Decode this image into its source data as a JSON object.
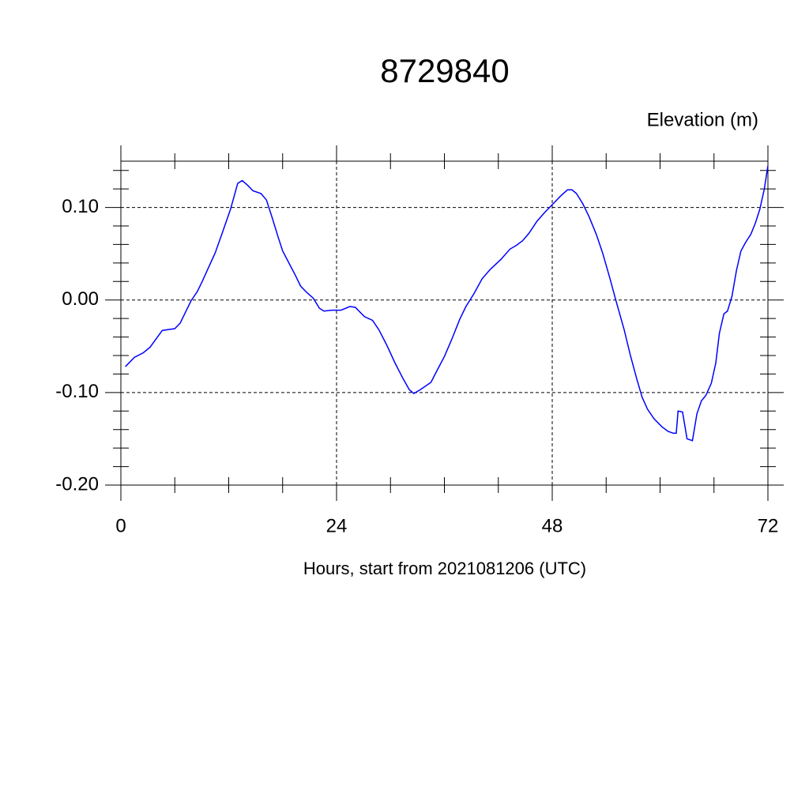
{
  "chart_data": {
    "type": "line",
    "title": "8729840",
    "y_label": "Elevation (m)",
    "x_label": "Hours, start from 2021081206 (UTC)",
    "color": "#0000ff",
    "grid": true,
    "xlim": [
      0,
      72
    ],
    "xticks": [
      0,
      24,
      48,
      72
    ],
    "ylim": [
      -0.2,
      0.15
    ],
    "yticks": [
      {
        "value": -0.2,
        "label": "-0.20"
      },
      {
        "value": -0.1,
        "label": "-0.10"
      },
      {
        "value": 0,
        "label": "0.00"
      },
      {
        "value": 0.1,
        "label": "0.10"
      }
    ],
    "x": [
      0.5,
      1.5,
      2.5,
      3.25,
      4,
      4.6,
      5.2,
      6,
      6.6,
      7.2,
      7.8,
      8.5,
      9.1,
      9.7,
      10.5,
      11.3,
      12.2,
      13.0,
      13.5,
      14.1,
      14.7,
      15.6,
      16.2,
      16.8,
      17.5,
      18.0,
      18.7,
      19.4,
      20.0,
      20.7,
      21.4,
      22.1,
      22.6,
      23.5,
      24.5,
      25.5,
      26.1,
      27.1,
      28.0,
      28.7,
      29.6,
      30.5,
      31.4,
      32.1,
      32.6,
      33.3,
      34.5,
      35.3,
      36.0,
      36.8,
      37.7,
      38.4,
      39.3,
      40.2,
      41.1,
      42.3,
      43.3,
      44.0,
      44.7,
      45.4,
      46.3,
      47.1,
      48.1,
      49.0,
      49.7,
      50.2,
      50.7,
      51.4,
      52.1,
      52.9,
      53.6,
      54.4,
      55.1,
      56.0,
      56.7,
      57.4,
      58.0,
      58.6,
      59.3,
      60.2,
      60.9,
      61.5,
      61.8,
      62.0,
      62.5,
      63.0,
      63.6,
      64.1,
      64.6,
      65.1,
      65.7,
      66.2,
      66.6,
      67.1,
      67.5,
      68.0,
      68.5,
      69.0,
      69.5,
      70.1,
      70.6,
      71.1,
      71.6,
      72.0
    ],
    "values": [
      -0.072,
      -0.062,
      -0.057,
      -0.051,
      -0.041,
      -0.033,
      -0.032,
      -0.031,
      -0.025,
      -0.013,
      -0.001,
      0.009,
      0.021,
      0.034,
      0.051,
      0.073,
      0.098,
      0.126,
      0.129,
      0.124,
      0.118,
      0.115,
      0.108,
      0.09,
      0.068,
      0.053,
      0.04,
      0.027,
      0.015,
      0.008,
      0.002,
      -0.009,
      -0.012,
      -0.011,
      -0.011,
      -0.007,
      -0.008,
      -0.018,
      -0.022,
      -0.032,
      -0.049,
      -0.068,
      -0.085,
      -0.097,
      -0.101,
      -0.097,
      -0.089,
      -0.074,
      -0.061,
      -0.043,
      -0.021,
      -0.007,
      0.007,
      0.023,
      0.033,
      0.044,
      0.055,
      0.059,
      0.064,
      0.072,
      0.085,
      0.094,
      0.104,
      0.113,
      0.119,
      0.119,
      0.115,
      0.104,
      0.09,
      0.071,
      0.051,
      0.024,
      -0.001,
      -0.032,
      -0.06,
      -0.085,
      -0.105,
      -0.118,
      -0.128,
      -0.137,
      -0.142,
      -0.144,
      -0.144,
      -0.12,
      -0.121,
      -0.15,
      -0.152,
      -0.123,
      -0.109,
      -0.103,
      -0.09,
      -0.068,
      -0.036,
      -0.015,
      -0.012,
      0.004,
      0.032,
      0.053,
      0.062,
      0.071,
      0.083,
      0.098,
      0.12,
      0.145
    ]
  }
}
